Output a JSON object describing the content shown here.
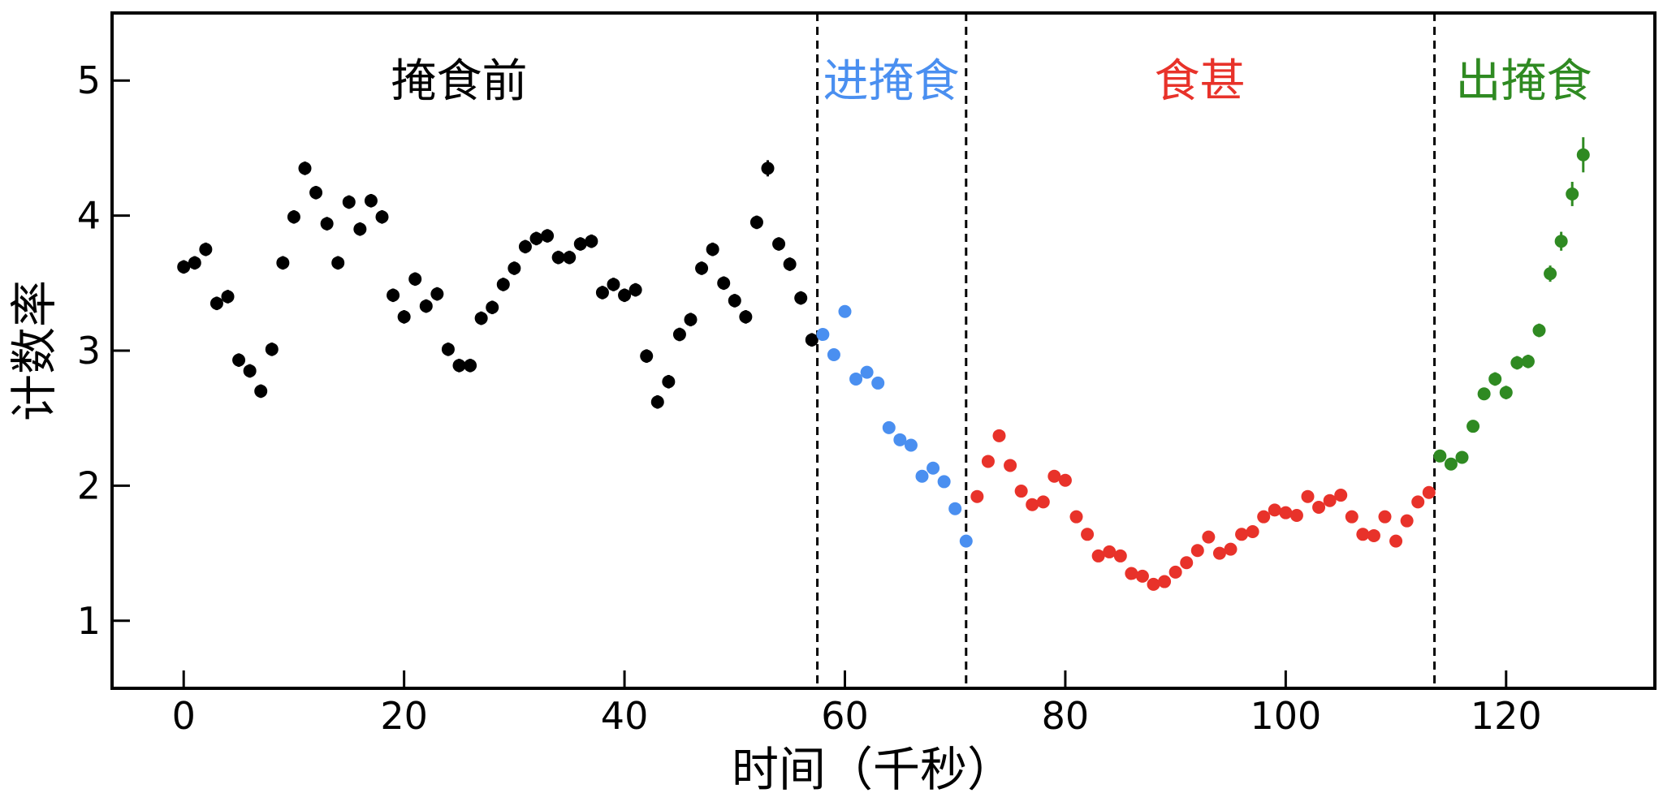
{
  "chart_data": {
    "type": "scatter",
    "xlabel": "时间（千秒）",
    "ylabel": "计数率",
    "xlim": [
      -6.5,
      133.5
    ],
    "ylim": [
      0.5,
      5.5
    ],
    "x_ticks": [
      0,
      20,
      40,
      60,
      80,
      100,
      120
    ],
    "y_ticks": [
      1,
      2,
      3,
      4,
      5
    ],
    "grid": false,
    "legend": "none",
    "phase_boundaries": [
      57.5,
      71,
      113.5
    ],
    "phase_labels": [
      {
        "text": "掩食前",
        "x": 25,
        "y": 5.0,
        "color": "#000000"
      },
      {
        "text": "进掩食",
        "x": 64.2,
        "y": 5.0,
        "color": "#4a8ff0"
      },
      {
        "text": "食甚",
        "x": 92.2,
        "y": 5.0,
        "color": "#e8322a"
      },
      {
        "text": "出掩食",
        "x": 121.6,
        "y": 5.0,
        "color": "#2f8a22"
      }
    ],
    "series": [
      {
        "color": "#000000",
        "x": [
          0,
          1,
          2,
          3,
          4,
          5,
          6,
          7,
          8,
          9,
          10,
          11,
          12,
          13,
          14,
          15,
          16,
          17,
          18,
          19,
          20,
          21,
          22,
          23,
          24,
          25,
          26,
          27,
          28,
          29,
          30,
          31,
          32,
          33,
          34,
          35,
          36,
          37,
          38,
          39,
          40,
          41,
          42,
          43,
          44,
          45,
          46,
          47,
          48,
          49,
          50,
          51,
          52,
          53,
          54,
          55,
          56,
          57
        ],
        "y": [
          3.62,
          3.65,
          3.75,
          3.35,
          3.4,
          2.93,
          2.85,
          2.7,
          3.01,
          3.65,
          3.99,
          4.35,
          4.17,
          3.94,
          3.65,
          4.1,
          3.9,
          4.11,
          3.99,
          3.41,
          3.25,
          3.53,
          3.33,
          3.42,
          3.01,
          2.89,
          2.89,
          3.24,
          3.32,
          3.49,
          3.61,
          3.77,
          3.83,
          3.85,
          3.69,
          3.69,
          3.79,
          3.81,
          3.43,
          3.49,
          3.41,
          3.45,
          2.96,
          2.62,
          2.77,
          3.12,
          3.23,
          3.61,
          3.75,
          3.5,
          3.37,
          3.25,
          3.95,
          4.35,
          3.79,
          3.64,
          3.39,
          3.08
        ],
        "err": [
          0.05,
          0.05,
          0.05,
          0.05,
          0.05,
          0.05,
          0.05,
          0.05,
          0.05,
          0.05,
          0.05,
          0.05,
          0.05,
          0.05,
          0.05,
          0.05,
          0.05,
          0.05,
          0.05,
          0.05,
          0.05,
          0.05,
          0.05,
          0.05,
          0.05,
          0.05,
          0.05,
          0.05,
          0.05,
          0.05,
          0.05,
          0.05,
          0.05,
          0.05,
          0.05,
          0.05,
          0.05,
          0.05,
          0.05,
          0.05,
          0.05,
          0.05,
          0.05,
          0.05,
          0.05,
          0.05,
          0.05,
          0.05,
          0.05,
          0.05,
          0.05,
          0.05,
          0.05,
          0.06,
          0.05,
          0.05,
          0.05,
          0.05
        ]
      },
      {
        "color": "#4a8ff0",
        "x": [
          58,
          59,
          60,
          61,
          62,
          63,
          64,
          65,
          66,
          67,
          68,
          69,
          70,
          71
        ],
        "y": [
          3.12,
          2.97,
          3.29,
          2.79,
          2.84,
          2.76,
          2.43,
          2.34,
          2.3,
          2.07,
          2.13,
          2.03,
          1.83,
          1.59
        ],
        "err": [
          0.03,
          0.03,
          0.03,
          0.03,
          0.03,
          0.03,
          0.03,
          0.03,
          0.03,
          0.03,
          0.03,
          0.03,
          0.03,
          0.03
        ]
      },
      {
        "color": "#e8322a",
        "x": [
          72,
          73,
          74,
          75,
          76,
          77,
          78,
          79,
          80,
          81,
          82,
          83,
          84,
          85,
          86,
          87,
          88,
          89,
          90,
          91,
          92,
          93,
          94,
          95,
          96,
          97,
          98,
          99,
          100,
          101,
          102,
          103,
          104,
          105,
          106,
          107,
          108,
          109,
          110,
          111,
          112,
          113
        ],
        "y": [
          1.92,
          2.18,
          2.37,
          2.15,
          1.96,
          1.86,
          1.88,
          2.07,
          2.04,
          1.77,
          1.64,
          1.48,
          1.51,
          1.48,
          1.35,
          1.33,
          1.27,
          1.29,
          1.36,
          1.43,
          1.52,
          1.62,
          1.5,
          1.53,
          1.64,
          1.66,
          1.77,
          1.82,
          1.8,
          1.78,
          1.92,
          1.84,
          1.89,
          1.93,
          1.77,
          1.64,
          1.63,
          1.77,
          1.59,
          1.74,
          1.88,
          1.95
        ],
        "err": [
          0.02,
          0.02,
          0.02,
          0.02,
          0.02,
          0.02,
          0.02,
          0.02,
          0.02,
          0.02,
          0.02,
          0.02,
          0.02,
          0.02,
          0.02,
          0.02,
          0.02,
          0.02,
          0.02,
          0.02,
          0.02,
          0.02,
          0.02,
          0.02,
          0.02,
          0.02,
          0.02,
          0.02,
          0.02,
          0.02,
          0.02,
          0.02,
          0.02,
          0.02,
          0.02,
          0.02,
          0.02,
          0.02,
          0.02,
          0.02,
          0.02,
          0.02
        ]
      },
      {
        "color": "#2f8a22",
        "x": [
          114,
          115,
          116,
          117,
          118,
          119,
          120,
          121,
          122,
          123,
          124,
          125,
          126,
          127
        ],
        "y": [
          2.22,
          2.16,
          2.21,
          2.44,
          2.68,
          2.79,
          2.69,
          2.91,
          2.92,
          3.15,
          3.57,
          3.81,
          4.16,
          4.45
        ],
        "err": [
          0.04,
          0.04,
          0.04,
          0.04,
          0.04,
          0.05,
          0.05,
          0.05,
          0.05,
          0.05,
          0.06,
          0.07,
          0.09,
          0.13
        ]
      }
    ]
  }
}
